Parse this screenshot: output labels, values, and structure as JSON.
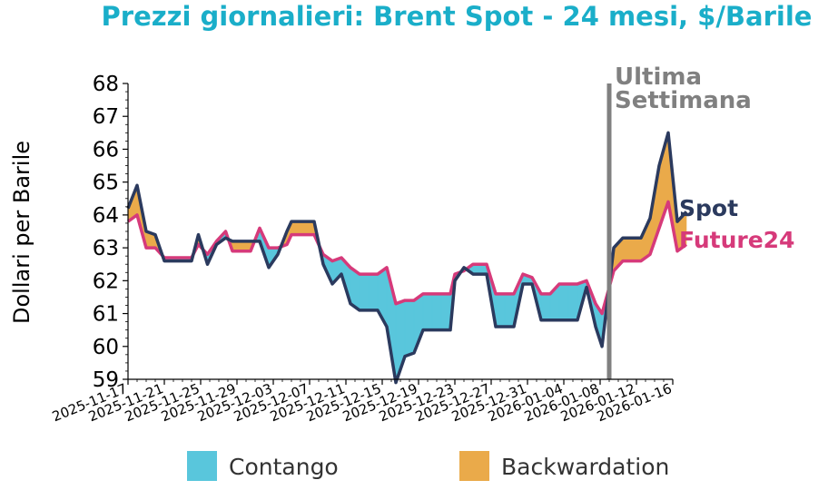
{
  "colors": {
    "title": "#1aaec9",
    "spot": "#2b3a5e",
    "future": "#d63a7a",
    "contango": "#59c6dc",
    "backwardation": "#eaaa4a",
    "marker": "#808080",
    "axis": "#000000"
  },
  "chart_data": {
    "type": "area",
    "title": "Prezzi giornalieri: Brent Spot - 24 mesi, $/Barile",
    "ylabel": "Dollari per Barile",
    "xlabel": "",
    "ylim": [
      59,
      68
    ],
    "yticks": [
      59,
      60,
      61,
      62,
      63,
      64,
      65,
      66,
      67,
      68
    ],
    "xlim": [
      "2025-11-17",
      "2026-01-16"
    ],
    "xticks": [
      "2025-11-17",
      "2025-11-21",
      "2025-11-25",
      "2025-11-29",
      "2025-12-03",
      "2025-12-07",
      "2025-12-11",
      "2025-12-15",
      "2025-12-19",
      "2025-12-23",
      "2025-12-27",
      "2025-12-31",
      "2026-01-04",
      "2026-01-08",
      "2026-01-12",
      "2026-01-16"
    ],
    "grid": false,
    "legend": "bottom",
    "annotation": {
      "text": [
        "Ultima",
        "Settimana"
      ],
      "date": "2026-01-09T00:00"
    },
    "fill_legend": [
      {
        "name": "Contango",
        "color": "#59c6dc"
      },
      {
        "name": "Backwardation",
        "color": "#eaaa4a"
      }
    ],
    "series": [
      {
        "name": "Spot",
        "points": [
          [
            "2025-11-17T00:00",
            64.2
          ],
          [
            "2025-11-18T00:00",
            64.9
          ],
          [
            "2025-11-19T00:00",
            63.5
          ],
          [
            "2025-11-20T00:00",
            63.4
          ],
          [
            "2025-11-21T00:00",
            62.6
          ],
          [
            "2025-11-22T00:00",
            62.6
          ],
          [
            "2025-11-23T00:00",
            62.6
          ],
          [
            "2025-11-24T00:00",
            62.6
          ],
          [
            "2025-11-24T18:00",
            63.4
          ],
          [
            "2025-11-25T18:00",
            62.5
          ],
          [
            "2025-11-26T18:00",
            63.1
          ],
          [
            "2025-11-27T18:00",
            63.3
          ],
          [
            "2025-11-28T12:00",
            63.2
          ],
          [
            "2025-11-29T12:00",
            63.2
          ],
          [
            "2025-11-30T12:00",
            63.2
          ],
          [
            "2025-12-01T12:00",
            63.2
          ],
          [
            "2025-12-02T12:00",
            62.4
          ],
          [
            "2025-12-03T12:00",
            62.8
          ],
          [
            "2025-12-04T12:00",
            63.5
          ],
          [
            "2025-12-05T00:00",
            63.8
          ],
          [
            "2025-12-06T00:00",
            63.8
          ],
          [
            "2025-12-07T00:00",
            63.8
          ],
          [
            "2025-12-07T12:00",
            63.8
          ],
          [
            "2025-12-08T12:00",
            62.5
          ],
          [
            "2025-12-09T12:00",
            61.9
          ],
          [
            "2025-12-10T12:00",
            62.2
          ],
          [
            "2025-12-11T12:00",
            61.3
          ],
          [
            "2025-12-12T12:00",
            61.1
          ],
          [
            "2025-12-13T12:00",
            61.1
          ],
          [
            "2025-12-14T12:00",
            61.1
          ],
          [
            "2025-12-15T12:00",
            60.6
          ],
          [
            "2025-12-16T12:00",
            58.9
          ],
          [
            "2025-12-17T12:00",
            59.7
          ],
          [
            "2025-12-18T12:00",
            59.8
          ],
          [
            "2025-12-19T12:00",
            60.5
          ],
          [
            "2025-12-20T12:00",
            60.5
          ],
          [
            "2025-12-21T12:00",
            60.5
          ],
          [
            "2025-12-22T12:00",
            60.5
          ],
          [
            "2025-12-23T00:00",
            62.0
          ],
          [
            "2025-12-24T00:00",
            62.4
          ],
          [
            "2025-12-25T00:00",
            62.2
          ],
          [
            "2025-12-26T00:00",
            62.2
          ],
          [
            "2025-12-26T12:00",
            62.2
          ],
          [
            "2025-12-27T12:00",
            60.6
          ],
          [
            "2025-12-28T12:00",
            60.6
          ],
          [
            "2025-12-29T12:00",
            60.6
          ],
          [
            "2025-12-30T12:00",
            61.9
          ],
          [
            "2025-12-31T12:00",
            61.9
          ],
          [
            "2026-01-01T12:00",
            60.8
          ],
          [
            "2026-01-02T12:00",
            60.8
          ],
          [
            "2026-01-03T12:00",
            60.8
          ],
          [
            "2026-01-04T12:00",
            60.8
          ],
          [
            "2026-01-05T12:00",
            60.8
          ],
          [
            "2026-01-06T12:00",
            61.8
          ],
          [
            "2026-01-07T12:00",
            60.6
          ],
          [
            "2026-01-08T05:00",
            60.0
          ],
          [
            "2026-01-09T12:00",
            63.0
          ],
          [
            "2026-01-10T12:00",
            63.3
          ],
          [
            "2026-01-11T12:00",
            63.3
          ],
          [
            "2026-01-12T12:00",
            63.3
          ],
          [
            "2026-01-13T12:00",
            63.9
          ],
          [
            "2026-01-14T12:00",
            65.5
          ],
          [
            "2026-01-15T12:00",
            66.5
          ],
          [
            "2026-01-16T12:00",
            63.8
          ],
          [
            "2026-01-17T12:00",
            64.1
          ]
        ]
      },
      {
        "name": "Future24",
        "points": [
          [
            "2025-11-17T00:00",
            63.8
          ],
          [
            "2025-11-18T00:00",
            64.0
          ],
          [
            "2025-11-19T00:00",
            63.0
          ],
          [
            "2025-11-20T00:00",
            63.0
          ],
          [
            "2025-11-21T00:00",
            62.7
          ],
          [
            "2025-11-22T00:00",
            62.7
          ],
          [
            "2025-11-23T00:00",
            62.7
          ],
          [
            "2025-11-24T00:00",
            62.7
          ],
          [
            "2025-11-24T18:00",
            63.1
          ],
          [
            "2025-11-25T18:00",
            62.8
          ],
          [
            "2025-11-26T18:00",
            63.2
          ],
          [
            "2025-11-27T18:00",
            63.5
          ],
          [
            "2025-11-28T12:00",
            62.9
          ],
          [
            "2025-11-29T12:00",
            62.9
          ],
          [
            "2025-11-30T12:00",
            62.9
          ],
          [
            "2025-12-01T12:00",
            63.6
          ],
          [
            "2025-12-02T12:00",
            63.0
          ],
          [
            "2025-12-03T12:00",
            63.0
          ],
          [
            "2025-12-04T12:00",
            63.1
          ],
          [
            "2025-12-05T00:00",
            63.4
          ],
          [
            "2025-12-06T00:00",
            63.4
          ],
          [
            "2025-12-07T00:00",
            63.4
          ],
          [
            "2025-12-07T12:00",
            63.4
          ],
          [
            "2025-12-08T12:00",
            62.8
          ],
          [
            "2025-12-09T12:00",
            62.6
          ],
          [
            "2025-12-10T12:00",
            62.7
          ],
          [
            "2025-12-11T12:00",
            62.4
          ],
          [
            "2025-12-12T12:00",
            62.2
          ],
          [
            "2025-12-13T12:00",
            62.2
          ],
          [
            "2025-12-14T12:00",
            62.2
          ],
          [
            "2025-12-15T12:00",
            62.4
          ],
          [
            "2025-12-16T12:00",
            61.3
          ],
          [
            "2025-12-17T12:00",
            61.4
          ],
          [
            "2025-12-18T12:00",
            61.4
          ],
          [
            "2025-12-19T12:00",
            61.6
          ],
          [
            "2025-12-20T12:00",
            61.6
          ],
          [
            "2025-12-21T12:00",
            61.6
          ],
          [
            "2025-12-22T12:00",
            61.6
          ],
          [
            "2025-12-23T00:00",
            62.2
          ],
          [
            "2025-12-24T00:00",
            62.3
          ],
          [
            "2025-12-25T00:00",
            62.5
          ],
          [
            "2025-12-26T00:00",
            62.5
          ],
          [
            "2025-12-26T12:00",
            62.5
          ],
          [
            "2025-12-27T12:00",
            61.6
          ],
          [
            "2025-12-28T12:00",
            61.6
          ],
          [
            "2025-12-29T12:00",
            61.6
          ],
          [
            "2025-12-30T12:00",
            62.2
          ],
          [
            "2025-12-31T12:00",
            62.1
          ],
          [
            "2026-01-01T12:00",
            61.6
          ],
          [
            "2026-01-02T12:00",
            61.6
          ],
          [
            "2026-01-03T12:00",
            61.9
          ],
          [
            "2026-01-04T12:00",
            61.9
          ],
          [
            "2026-01-05T12:00",
            61.9
          ],
          [
            "2026-01-06T12:00",
            62.0
          ],
          [
            "2026-01-07T12:00",
            61.3
          ],
          [
            "2026-01-08T05:00",
            61.0
          ],
          [
            "2026-01-09T12:00",
            62.3
          ],
          [
            "2026-01-10T12:00",
            62.6
          ],
          [
            "2026-01-11T12:00",
            62.6
          ],
          [
            "2026-01-12T12:00",
            62.6
          ],
          [
            "2026-01-13T12:00",
            62.8
          ],
          [
            "2026-01-14T12:00",
            63.6
          ],
          [
            "2026-01-15T12:00",
            64.4
          ],
          [
            "2026-01-16T12:00",
            62.9
          ],
          [
            "2026-01-17T12:00",
            63.1
          ]
        ]
      }
    ]
  }
}
